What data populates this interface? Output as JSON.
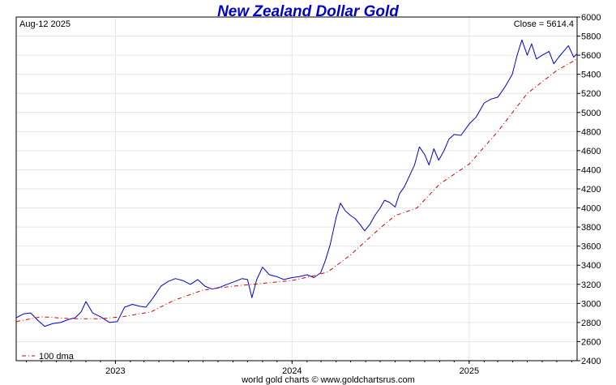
{
  "chart_data": {
    "type": "line",
    "title": "New Zealand Dollar Gold",
    "date_label": "Aug-12  2025",
    "close_label": "Close = 5614.4",
    "footer": "world gold charts © www.goldchartsrus.com",
    "ylim": [
      2400,
      6000
    ],
    "y_ticks": [
      2400,
      2600,
      2800,
      3000,
      3200,
      3400,
      3600,
      3800,
      4000,
      4200,
      4400,
      4600,
      4800,
      5000,
      5200,
      5400,
      5600,
      5800,
      6000
    ],
    "xlim": [
      "2022-06-10",
      "2025-08-12"
    ],
    "x_ticks": [
      {
        "label": "2023",
        "date": "2023-01-01"
      },
      {
        "label": "2024",
        "date": "2024-01-01"
      },
      {
        "label": "2025",
        "date": "2025-01-01"
      }
    ],
    "grid": true,
    "legend_position": "bottom-left",
    "colors": {
      "price": "#0000dd",
      "dma": "#dd0000",
      "title": "#0000cc",
      "grid": "#e6e6e6"
    },
    "series": [
      {
        "id": "price",
        "points": [
          [
            "2022-06-10",
            2850
          ],
          [
            "2022-06-25",
            2890
          ],
          [
            "2022-07-10",
            2900
          ],
          [
            "2022-07-25",
            2820
          ],
          [
            "2022-08-08",
            2760
          ],
          [
            "2022-08-25",
            2790
          ],
          [
            "2022-09-10",
            2800
          ],
          [
            "2022-09-25",
            2830
          ],
          [
            "2022-10-10",
            2850
          ],
          [
            "2022-10-22",
            2910
          ],
          [
            "2022-11-01",
            3020
          ],
          [
            "2022-11-15",
            2900
          ],
          [
            "2022-12-01",
            2860
          ],
          [
            "2022-12-20",
            2800
          ],
          [
            "2023-01-05",
            2810
          ],
          [
            "2023-01-20",
            2960
          ],
          [
            "2023-02-05",
            2990
          ],
          [
            "2023-02-20",
            2970
          ],
          [
            "2023-03-05",
            2960
          ],
          [
            "2023-03-20",
            3060
          ],
          [
            "2023-04-05",
            3180
          ],
          [
            "2023-04-20",
            3230
          ],
          [
            "2023-05-05",
            3260
          ],
          [
            "2023-05-20",
            3240
          ],
          [
            "2023-06-05",
            3200
          ],
          [
            "2023-06-20",
            3250
          ],
          [
            "2023-07-05",
            3180
          ],
          [
            "2023-07-20",
            3150
          ],
          [
            "2023-08-05",
            3170
          ],
          [
            "2023-08-20",
            3200
          ],
          [
            "2023-09-05",
            3230
          ],
          [
            "2023-09-20",
            3260
          ],
          [
            "2023-10-01",
            3250
          ],
          [
            "2023-10-10",
            3060
          ],
          [
            "2023-10-20",
            3250
          ],
          [
            "2023-11-01",
            3380
          ],
          [
            "2023-11-15",
            3300
          ],
          [
            "2023-12-01",
            3280
          ],
          [
            "2023-12-15",
            3250
          ],
          [
            "2024-01-01",
            3270
          ],
          [
            "2024-01-15",
            3280
          ],
          [
            "2024-02-01",
            3300
          ],
          [
            "2024-02-15",
            3270
          ],
          [
            "2024-02-29",
            3320
          ],
          [
            "2024-03-10",
            3450
          ],
          [
            "2024-03-20",
            3620
          ],
          [
            "2024-04-01",
            3900
          ],
          [
            "2024-04-10",
            4050
          ],
          [
            "2024-04-20",
            3970
          ],
          [
            "2024-05-01",
            3920
          ],
          [
            "2024-05-10",
            3890
          ],
          [
            "2024-05-20",
            3830
          ],
          [
            "2024-05-30",
            3760
          ],
          [
            "2024-06-10",
            3830
          ],
          [
            "2024-06-20",
            3920
          ],
          [
            "2024-07-01",
            4000
          ],
          [
            "2024-07-10",
            4080
          ],
          [
            "2024-07-20",
            4060
          ],
          [
            "2024-08-01",
            4010
          ],
          [
            "2024-08-10",
            4150
          ],
          [
            "2024-08-20",
            4220
          ],
          [
            "2024-09-01",
            4350
          ],
          [
            "2024-09-10",
            4450
          ],
          [
            "2024-09-20",
            4640
          ],
          [
            "2024-10-01",
            4560
          ],
          [
            "2024-10-10",
            4450
          ],
          [
            "2024-10-20",
            4620
          ],
          [
            "2024-10-30",
            4500
          ],
          [
            "2024-11-10",
            4600
          ],
          [
            "2024-11-20",
            4720
          ],
          [
            "2024-12-01",
            4770
          ],
          [
            "2024-12-15",
            4760
          ],
          [
            "2025-01-01",
            4880
          ],
          [
            "2025-01-15",
            4950
          ],
          [
            "2025-02-01",
            5100
          ],
          [
            "2025-02-15",
            5140
          ],
          [
            "2025-03-01",
            5160
          ],
          [
            "2025-03-15",
            5260
          ],
          [
            "2025-03-31",
            5400
          ],
          [
            "2025-04-10",
            5600
          ],
          [
            "2025-04-20",
            5760
          ],
          [
            "2025-05-01",
            5600
          ],
          [
            "2025-05-10",
            5720
          ],
          [
            "2025-05-20",
            5560
          ],
          [
            "2025-06-01",
            5600
          ],
          [
            "2025-06-15",
            5640
          ],
          [
            "2025-06-25",
            5510
          ],
          [
            "2025-07-05",
            5580
          ],
          [
            "2025-07-15",
            5640
          ],
          [
            "2025-07-25",
            5700
          ],
          [
            "2025-08-05",
            5580
          ],
          [
            "2025-08-12",
            5614.4
          ]
        ]
      },
      {
        "id": "dma",
        "name": "100 dma",
        "points": [
          [
            "2022-06-10",
            2810
          ],
          [
            "2022-08-01",
            2860
          ],
          [
            "2022-10-01",
            2840
          ],
          [
            "2022-12-01",
            2840
          ],
          [
            "2023-01-15",
            2860
          ],
          [
            "2023-03-15",
            2910
          ],
          [
            "2023-05-01",
            3030
          ],
          [
            "2023-07-01",
            3140
          ],
          [
            "2023-09-01",
            3180
          ],
          [
            "2023-11-01",
            3210
          ],
          [
            "2024-01-01",
            3240
          ],
          [
            "2024-02-15",
            3290
          ],
          [
            "2024-03-15",
            3330
          ],
          [
            "2024-05-01",
            3510
          ],
          [
            "2024-07-01",
            3790
          ],
          [
            "2024-08-01",
            3920
          ],
          [
            "2024-09-15",
            4000
          ],
          [
            "2024-11-01",
            4250
          ],
          [
            "2025-01-01",
            4460
          ],
          [
            "2025-03-01",
            4800
          ],
          [
            "2025-05-01",
            5200
          ],
          [
            "2025-07-01",
            5440
          ],
          [
            "2025-08-12",
            5560
          ]
        ]
      }
    ]
  }
}
